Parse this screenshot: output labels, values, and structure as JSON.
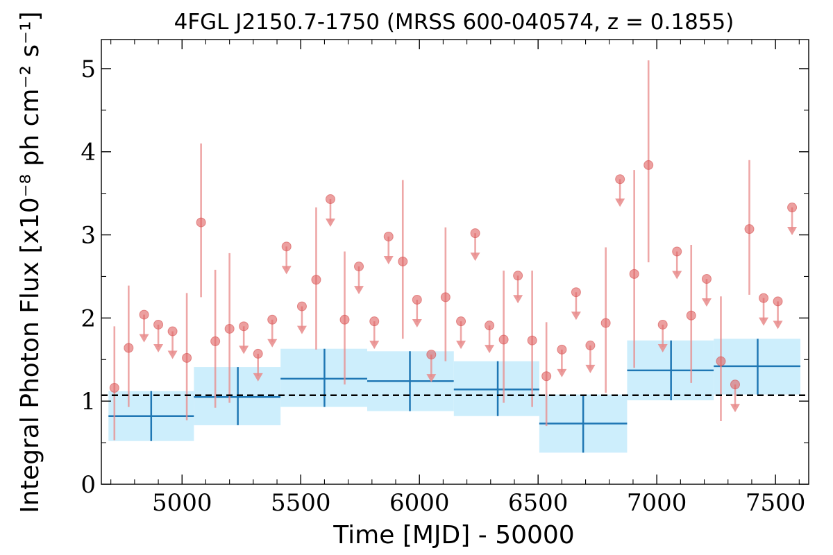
{
  "chart_data": {
    "type": "scatter",
    "title": "4FGL J2150.7-1750 (MRSS 600-040574, z = 0.1855)",
    "xlabel": "Time [MJD] - 50000",
    "ylabel": "Integral Photon Flux [x10⁻⁸ ph cm⁻² s⁻¹]",
    "xlim": [
      4660,
      7640
    ],
    "ylim": [
      0,
      5.35
    ],
    "x_ticks": [
      5000,
      5500,
      6000,
      6500,
      7000,
      7500
    ],
    "y_ticks": [
      0,
      1,
      2,
      3,
      4,
      5
    ],
    "grid": false,
    "mean_flux": 1.07,
    "colors": {
      "points": "#e88a8a",
      "bins_line": "#1f77b4",
      "bins_fill": "#cdeefc",
      "mean_line": "#000000"
    },
    "series": [
      {
        "kind": "detections",
        "points": [
          {
            "x": 4715,
            "y": 1.16,
            "lo": 0.53,
            "hi": 1.9
          },
          {
            "x": 4775,
            "y": 1.64,
            "lo": 0.93,
            "hi": 2.39
          },
          {
            "x": 5020,
            "y": 1.52,
            "lo": 0.77,
            "hi": 2.3
          },
          {
            "x": 5080,
            "y": 3.15,
            "lo": 2.25,
            "hi": 4.1
          },
          {
            "x": 5140,
            "y": 1.72,
            "lo": 0.92,
            "hi": 2.58
          },
          {
            "x": 5200,
            "y": 1.87,
            "lo": 0.98,
            "hi": 2.78
          },
          {
            "x": 5565,
            "y": 2.46,
            "lo": 1.62,
            "hi": 3.33
          },
          {
            "x": 5685,
            "y": 1.98,
            "lo": 1.2,
            "hi": 2.8
          },
          {
            "x": 5930,
            "y": 2.68,
            "lo": 1.75,
            "hi": 3.66
          },
          {
            "x": 6110,
            "y": 2.25,
            "lo": 1.48,
            "hi": 3.09
          },
          {
            "x": 6355,
            "y": 1.74,
            "lo": 0.98,
            "hi": 2.57
          },
          {
            "x": 6475,
            "y": 1.73,
            "lo": 0.93,
            "hi": 2.57
          },
          {
            "x": 6535,
            "y": 1.3,
            "lo": 0.7,
            "hi": 1.95
          },
          {
            "x": 6785,
            "y": 1.94,
            "lo": 1.1,
            "hi": 2.85
          },
          {
            "x": 6905,
            "y": 2.53,
            "lo": 1.4,
            "hi": 3.78
          },
          {
            "x": 6965,
            "y": 3.84,
            "lo": 2.67,
            "hi": 5.1
          },
          {
            "x": 7145,
            "y": 2.03,
            "lo": 1.22,
            "hi": 2.88
          },
          {
            "x": 7270,
            "y": 1.48,
            "lo": 0.76,
            "hi": 2.26
          },
          {
            "x": 7390,
            "y": 3.07,
            "lo": 2.28,
            "hi": 3.9
          }
        ]
      },
      {
        "kind": "upper_limits",
        "points": [
          {
            "x": 4840,
            "y": 2.04
          },
          {
            "x": 4900,
            "y": 1.92
          },
          {
            "x": 4960,
            "y": 1.84
          },
          {
            "x": 5260,
            "y": 1.9
          },
          {
            "x": 5320,
            "y": 1.57
          },
          {
            "x": 5380,
            "y": 1.98
          },
          {
            "x": 5440,
            "y": 2.86
          },
          {
            "x": 5505,
            "y": 2.14
          },
          {
            "x": 5625,
            "y": 3.43
          },
          {
            "x": 5745,
            "y": 2.62
          },
          {
            "x": 5810,
            "y": 1.96
          },
          {
            "x": 5870,
            "y": 2.98
          },
          {
            "x": 5990,
            "y": 2.22
          },
          {
            "x": 6050,
            "y": 1.56
          },
          {
            "x": 6175,
            "y": 1.96
          },
          {
            "x": 6235,
            "y": 3.02
          },
          {
            "x": 6295,
            "y": 1.91
          },
          {
            "x": 6415,
            "y": 2.51
          },
          {
            "x": 6600,
            "y": 1.62
          },
          {
            "x": 6660,
            "y": 2.31
          },
          {
            "x": 6720,
            "y": 1.67
          },
          {
            "x": 6845,
            "y": 3.67
          },
          {
            "x": 7025,
            "y": 1.92
          },
          {
            "x": 7085,
            "y": 2.8
          },
          {
            "x": 7210,
            "y": 2.47
          },
          {
            "x": 7330,
            "y": 1.2
          },
          {
            "x": 7450,
            "y": 2.24
          },
          {
            "x": 7510,
            "y": 2.2
          },
          {
            "x": 7570,
            "y": 3.33
          }
        ]
      },
      {
        "kind": "bins",
        "bins": [
          {
            "x0": 4690,
            "x1": 5050,
            "xc": 4870,
            "y": 0.82,
            "lo": 0.52,
            "hi": 1.12
          },
          {
            "x0": 5050,
            "x1": 5415,
            "xc": 5235,
            "y": 1.05,
            "lo": 0.71,
            "hi": 1.41
          },
          {
            "x0": 5415,
            "x1": 5780,
            "xc": 5600,
            "y": 1.27,
            "lo": 0.93,
            "hi": 1.63
          },
          {
            "x0": 5780,
            "x1": 6145,
            "xc": 5960,
            "y": 1.24,
            "lo": 0.88,
            "hi": 1.6
          },
          {
            "x0": 6145,
            "x1": 6505,
            "xc": 6330,
            "y": 1.14,
            "lo": 0.82,
            "hi": 1.48
          },
          {
            "x0": 6505,
            "x1": 6875,
            "xc": 6690,
            "y": 0.73,
            "lo": 0.38,
            "hi": 1.08
          },
          {
            "x0": 6875,
            "x1": 7240,
            "xc": 7060,
            "y": 1.37,
            "lo": 1.01,
            "hi": 1.73
          },
          {
            "x0": 7240,
            "x1": 7605,
            "xc": 7425,
            "y": 1.42,
            "lo": 1.08,
            "hi": 1.75
          }
        ]
      }
    ]
  }
}
